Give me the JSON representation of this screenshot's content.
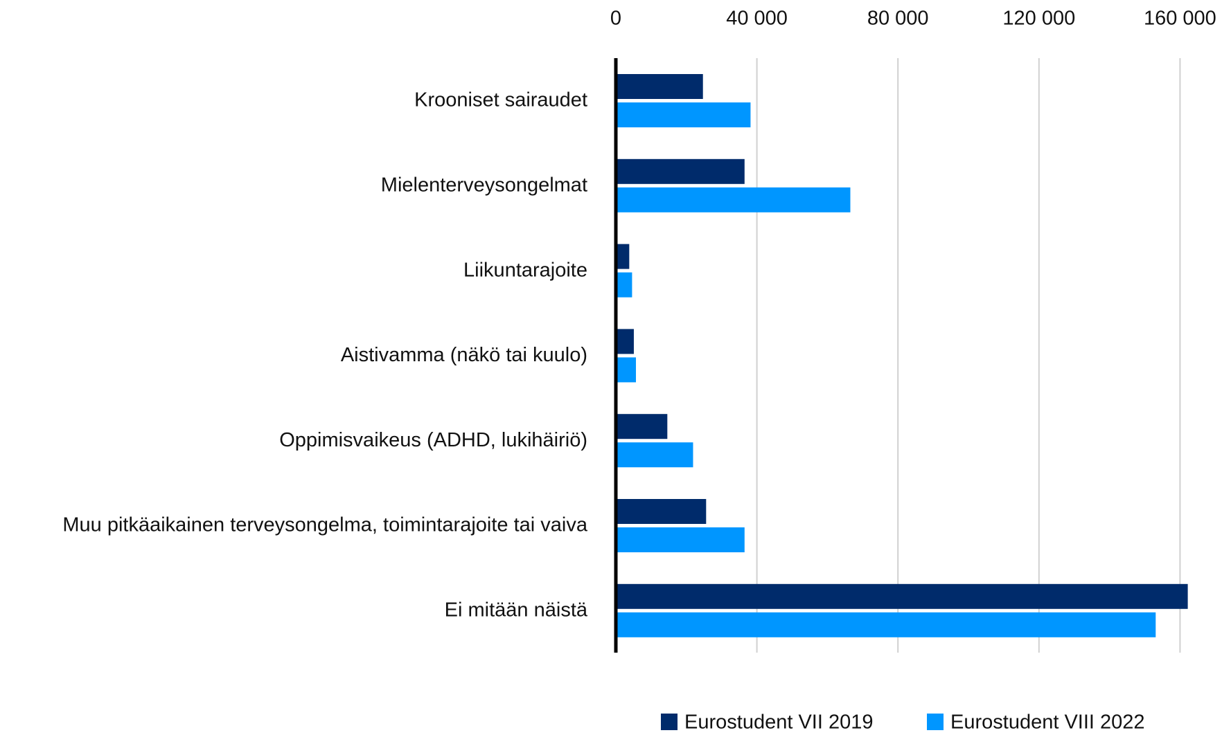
{
  "chart_data": {
    "type": "barh",
    "categories": [
      "Krooniset sairaudet",
      "Mielenterveysongelmat",
      "Liikuntarajoite",
      "Aistivamma (näkö tai kuulo)",
      "Oppimisvaikeus (ADHD, lukihäiriö)",
      "Muu pitkäaikainen terveysongelma, toimintarajoite tai vaiva",
      "Ei mitään näistä"
    ],
    "series": [
      {
        "name": "Eurostudent VII 2019",
        "color": "#002b6b",
        "values": [
          24700,
          36500,
          3800,
          5100,
          14600,
          25600,
          162200
        ]
      },
      {
        "name": "Eurostudent VIII 2022",
        "color": "#0096ff",
        "values": [
          38200,
          66500,
          4600,
          5700,
          21900,
          36500,
          153100
        ]
      }
    ],
    "xlim": [
      0,
      170000
    ],
    "xticks": [
      0,
      {
        "value": 40000,
        "label": "40 000"
      },
      {
        "value": 80000,
        "label": "80 000"
      },
      {
        "value": 120000,
        "label": "120 000"
      },
      {
        "value": 160000,
        "label": "160 000"
      }
    ],
    "grid": true,
    "legend": "bottom"
  }
}
